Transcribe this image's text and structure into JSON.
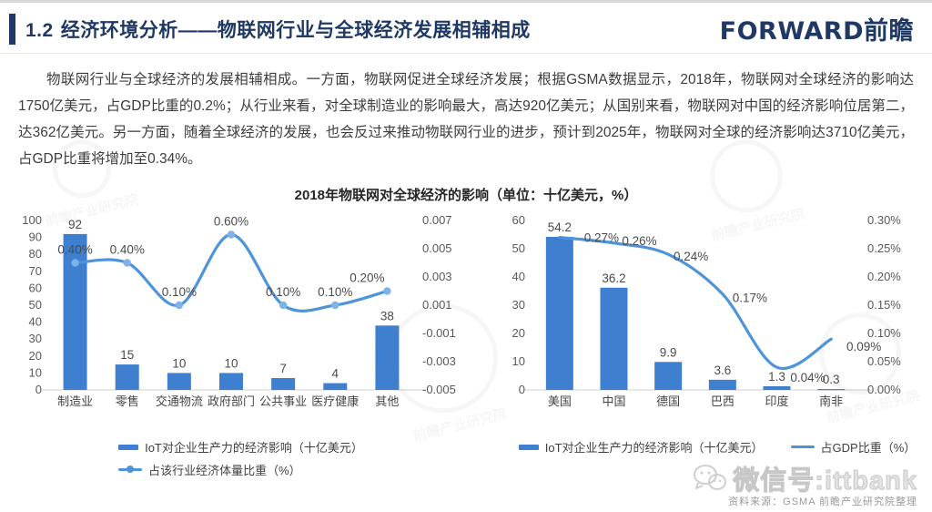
{
  "colors": {
    "primary": "#1F3864",
    "bar": "#3E7FD0",
    "line": "#4D94DB",
    "marker": "#7EB3E8",
    "value_label": "#4a4a4a",
    "tick_label": "#595959"
  },
  "header": {
    "section_number": "1.2",
    "title": "经济环境分析——物联网行业与全球经济发展相辅相成",
    "logo_text": "FORWARD前瞻"
  },
  "paragraph": "物联网行业与全球经济的发展相辅相成。一方面，物联网促进全球经济发展；根据GSMA数据显示，2018年，物联网对全球经济的影响达1750亿美元，占GDP比重的0.2%；从行业来看，对全球制造业的影响最大，高达920亿美元；从国别来看，物联网对中国的经济影响位居第二，达362亿美元。另一方面，随着全球经济的发展，也会反过来推动物联网行业的进步，预计到2025年，物联网对全球的经济影响达3710亿美元，占GDP比重将增加至0.34%。",
  "chart_title": "2018年物联网对全球经济的影响（单位：十亿美元，%）",
  "chart_data": [
    {
      "type": "bar+line",
      "categories": [
        "制造业",
        "零售",
        "交通物流",
        "政府部门",
        "公共事业",
        "医疗健康",
        "其他"
      ],
      "bar_series": {
        "name": "IoT对企业生产力的经济影响（十亿美元）",
        "values": [
          92,
          15,
          10,
          10,
          7,
          4,
          38
        ],
        "value_labels": [
          "92",
          "15",
          "10",
          "10",
          "7",
          "4",
          "38"
        ]
      },
      "line_series": {
        "name": "占该行业经济体量比重（%）",
        "values": [
          0.004,
          0.004,
          0.001,
          0.006,
          0.001,
          0.001,
          0.002
        ],
        "point_labels": [
          "0.40%",
          "0.40%",
          "0.10%",
          "0.60%",
          "0.10%",
          "0.10%",
          "0.20%"
        ]
      },
      "left_axis": {
        "min": 0,
        "max": 100,
        "ticks": [
          "100",
          "90",
          "80",
          "70",
          "60",
          "50",
          "40",
          "30",
          "20",
          "10",
          "0"
        ]
      },
      "right_axis": {
        "min": -0.005,
        "max": 0.007,
        "ticks": [
          "0.007",
          "0.005",
          "0.003",
          "0.001",
          "-0.001",
          "-0.003",
          "-0.005"
        ]
      },
      "legend_style": "column",
      "grid": false,
      "legend_position": "bottom"
    },
    {
      "type": "bar+line",
      "categories": [
        "美国",
        "中国",
        "德国",
        "巴西",
        "印度",
        "南非"
      ],
      "bar_series": {
        "name": "IoT对企业生产力的经济影响（十亿美元）",
        "values": [
          54.2,
          36.2,
          9.9,
          3.6,
          1.3,
          0.3
        ],
        "value_labels": [
          "54.2",
          "36.2",
          "9.9",
          "3.6",
          "1.3",
          "0.3"
        ]
      },
      "line_series": {
        "name": "占GDP比重（%）",
        "values": [
          0.27,
          0.26,
          0.24,
          0.17,
          0.04,
          0.09
        ],
        "point_labels": [
          "0.27%",
          "0.26%",
          "0.24%",
          "0.17%",
          "0.04%",
          "0.09%"
        ]
      },
      "left_axis": {
        "min": 0,
        "max": 60,
        "ticks": [
          "60",
          "50",
          "40",
          "30",
          "20",
          "10",
          "0"
        ]
      },
      "right_axis": {
        "min": 0,
        "max": 0.3,
        "ticks": [
          "0.30%",
          "0.25%",
          "0.20%",
          "0.15%",
          "0.10%",
          "0.05%",
          "0.00%"
        ]
      },
      "legend_style": "row",
      "grid": false,
      "legend_position": "bottom"
    }
  ],
  "wechat_label": "微信号:ittbank",
  "source_note": "资料来源：GSMA  前瞻产业研究院整理",
  "bg_watermark_text": "前瞻产业研究院"
}
